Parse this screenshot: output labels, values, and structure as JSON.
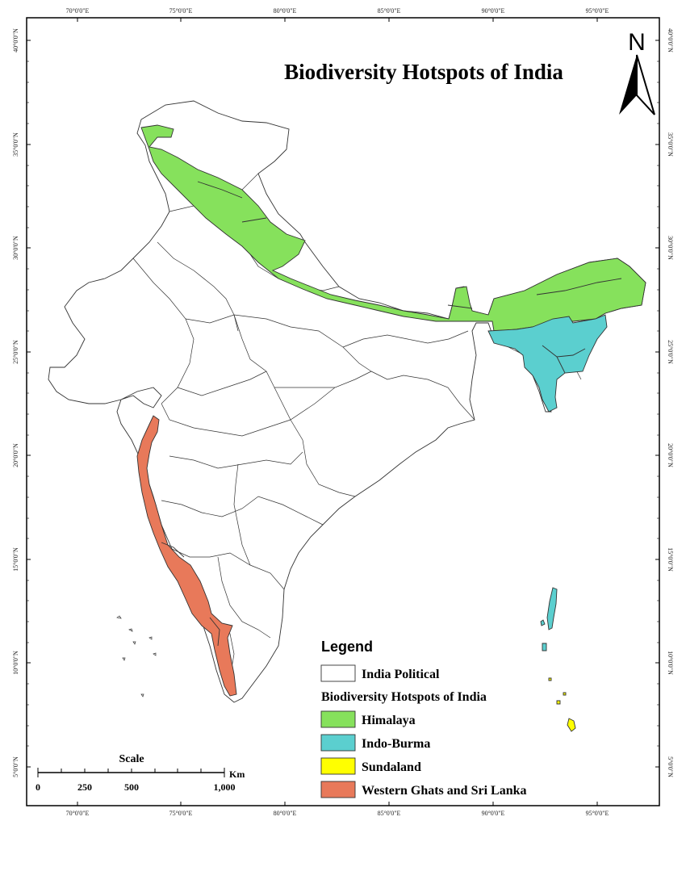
{
  "title": "Biodiversity Hotspots of India",
  "north_label": "N",
  "graticule": {
    "lon_labels": [
      "70°0'0\"E",
      "75°0'0\"E",
      "80°0'0\"E",
      "85°0'0\"E",
      "90°0'0\"E",
      "95°0'0\"E"
    ],
    "lat_labels": [
      "40°0'0\"N",
      "35°0'0\"N",
      "30°0'0\"N",
      "25°0'0\"N",
      "20°0'0\"N",
      "15°0'0\"N",
      "10°0'0\"N",
      "5°0'0\"N"
    ]
  },
  "legend": {
    "title": "Legend",
    "political_label": "India Political",
    "hotspots_heading": "Biodiversity Hotspots of India",
    "items": [
      {
        "label": "Himalaya",
        "color": "#86e15c"
      },
      {
        "label": "Indo-Burma",
        "color": "#5bcfcf"
      },
      {
        "label": "Sundaland",
        "color": "#ffff00"
      },
      {
        "label": "Western Ghats and Sri Lanka",
        "color": "#e8795a"
      }
    ]
  },
  "scale": {
    "title": "Scale",
    "unit": "Km",
    "ticks": [
      "0",
      "250",
      "500",
      "1,000"
    ]
  },
  "colors": {
    "himalaya": "#86e15c",
    "indo_burma": "#5bcfcf",
    "sundaland": "#ffff00",
    "western_ghats": "#e8795a",
    "outline": "#333333"
  }
}
